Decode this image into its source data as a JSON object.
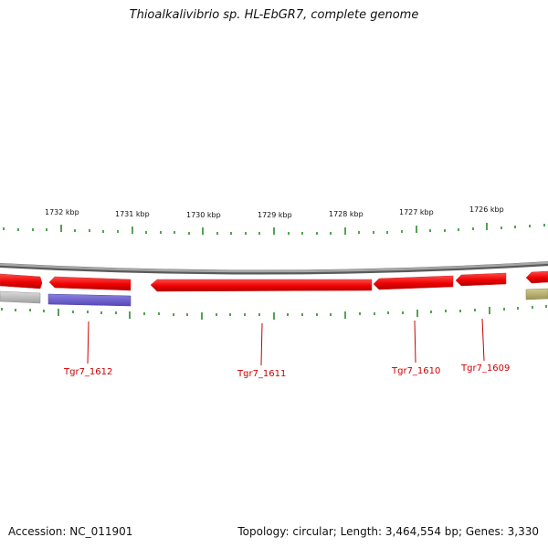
{
  "title": "Thioalkalivibrio sp. HL-EbGR7, complete genome",
  "accession": "Accession: NC_011901",
  "summary": "Topology: circular; Length: 3,464,554 bp; Genes: 3,330",
  "scale_labels": [
    "1732 kbp",
    "1731 kbp",
    "1730 kbp",
    "1729 kbp",
    "1728 kbp",
    "1727 kbp",
    "1726 kbp"
  ],
  "gene_labels": [
    "Tgr7_1612",
    "Tgr7_1611",
    "Tgr7_1610",
    "Tgr7_1609"
  ],
  "colors": {
    "backbone": "#8a8a8a",
    "forward_gene": "#ee0000",
    "reverse_gray": "#b8b8b8",
    "reverse_blue": "#7066cc",
    "reverse_olive": "#b8b070",
    "tick": "#2a8a2a",
    "label": "#cc0000"
  }
}
